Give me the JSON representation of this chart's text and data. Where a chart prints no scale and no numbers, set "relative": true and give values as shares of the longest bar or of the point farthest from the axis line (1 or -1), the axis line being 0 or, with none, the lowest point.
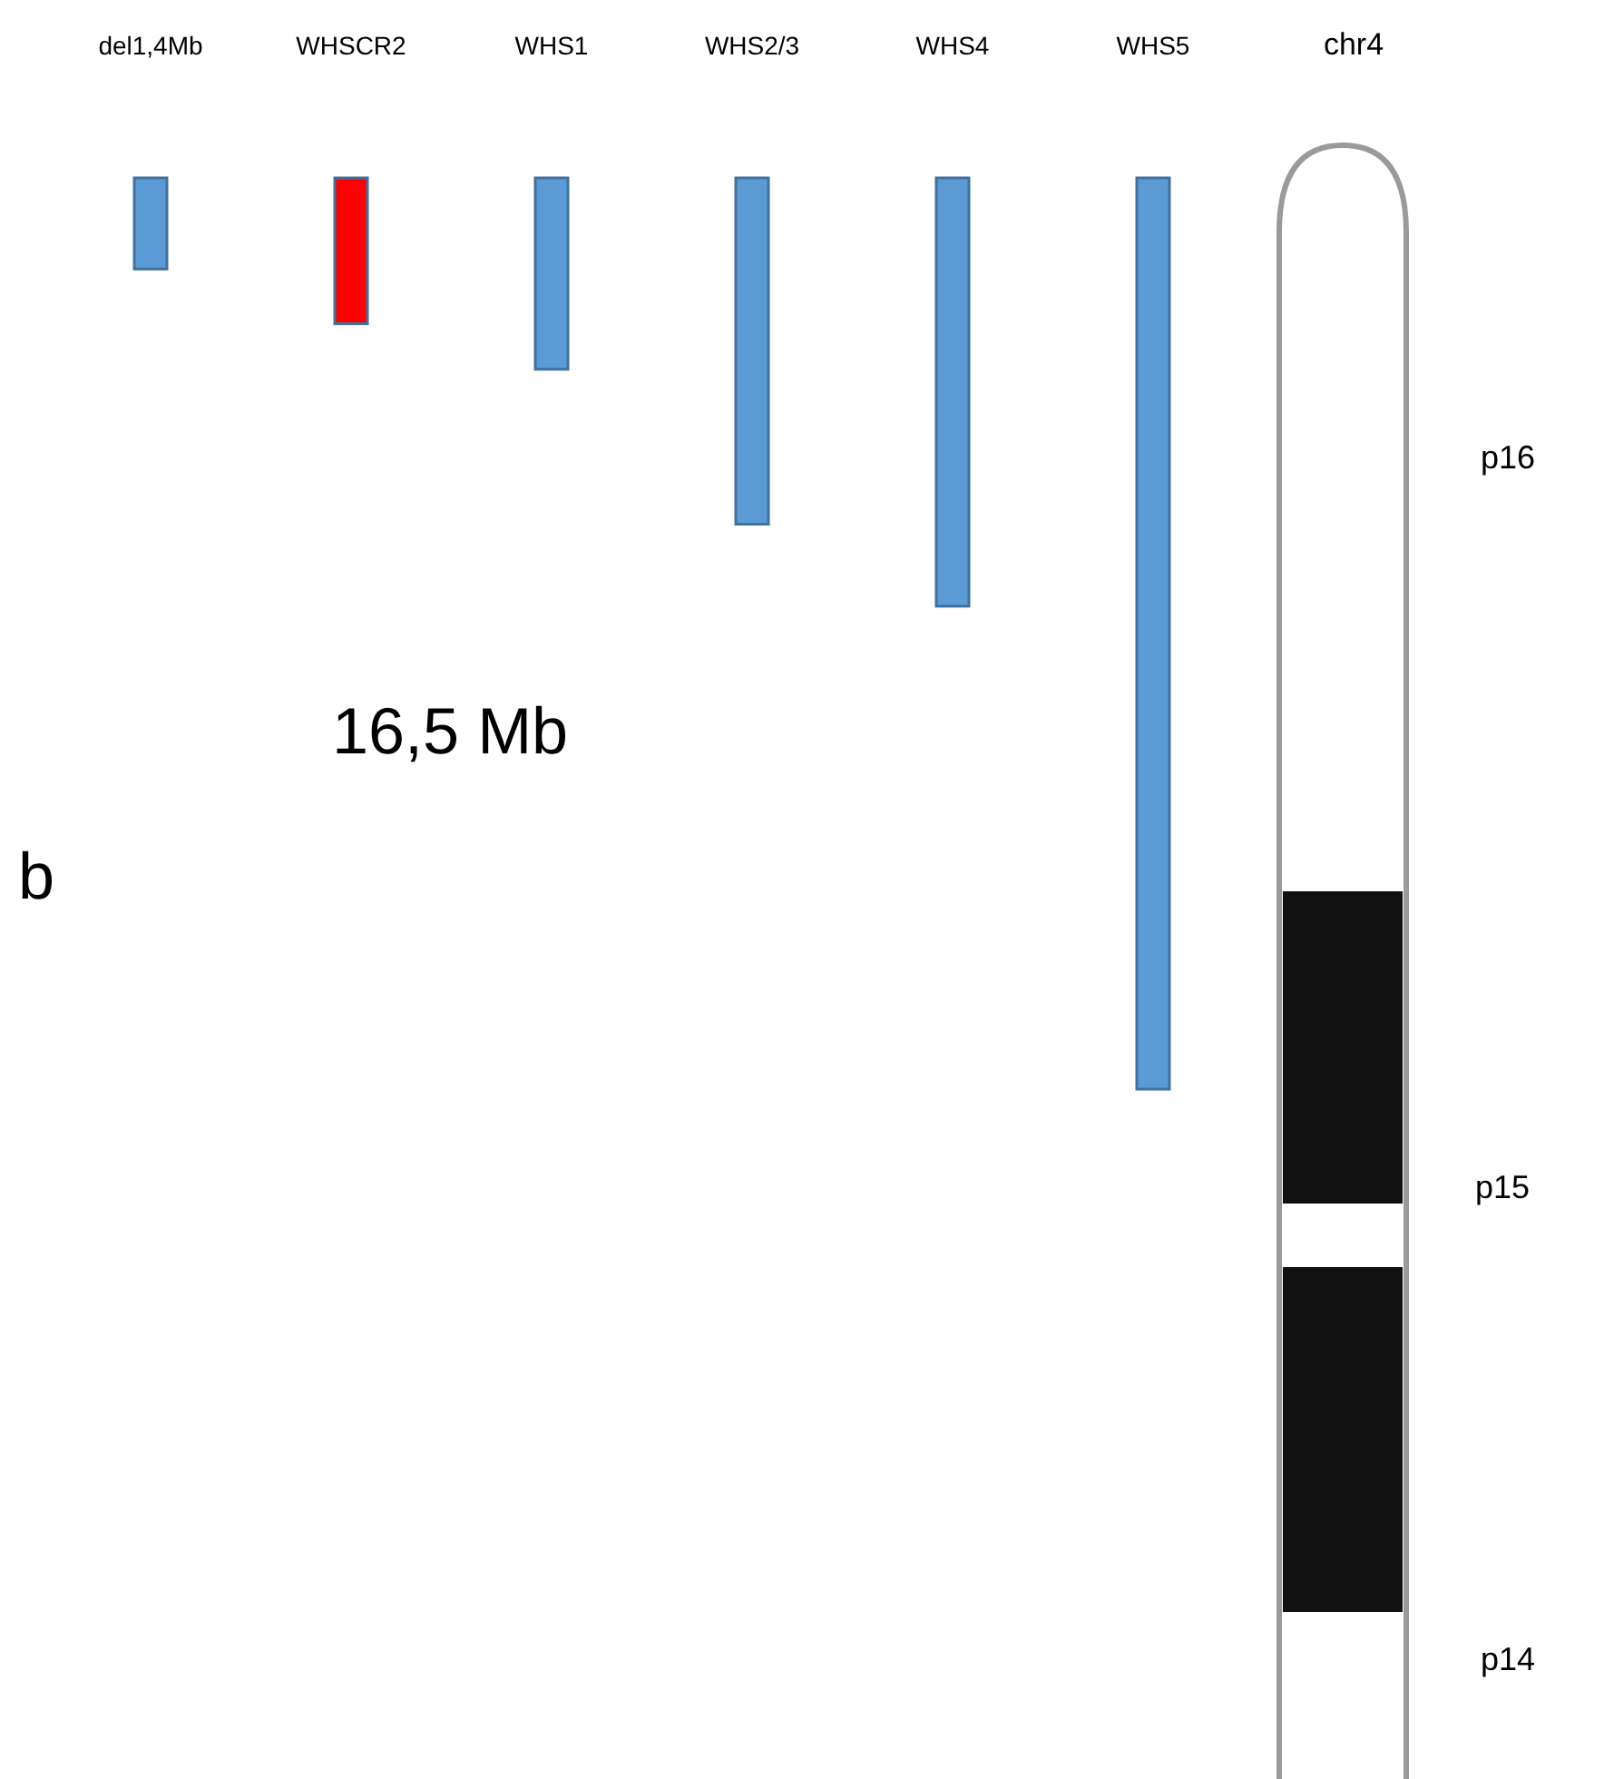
{
  "chart_data": {
    "type": "bar",
    "relative": true,
    "categories": [
      "del1,4Mb",
      "WHSCR2",
      "WHS1",
      "WHS2/3",
      "WHS4",
      "WHS5"
    ],
    "values": [
      -0.1,
      -0.16,
      -0.21,
      -0.38,
      -0.47,
      -1
    ],
    "colors": [
      "#5b9bd5",
      "#ff0000",
      "#5b9bd5",
      "#5b9bd5",
      "#5b9bd5",
      "#5b9bd5"
    ],
    "annotations": [
      "chr4",
      "p16",
      "p15",
      "p14",
      "16,5 Mb",
      "b"
    ]
  }
}
